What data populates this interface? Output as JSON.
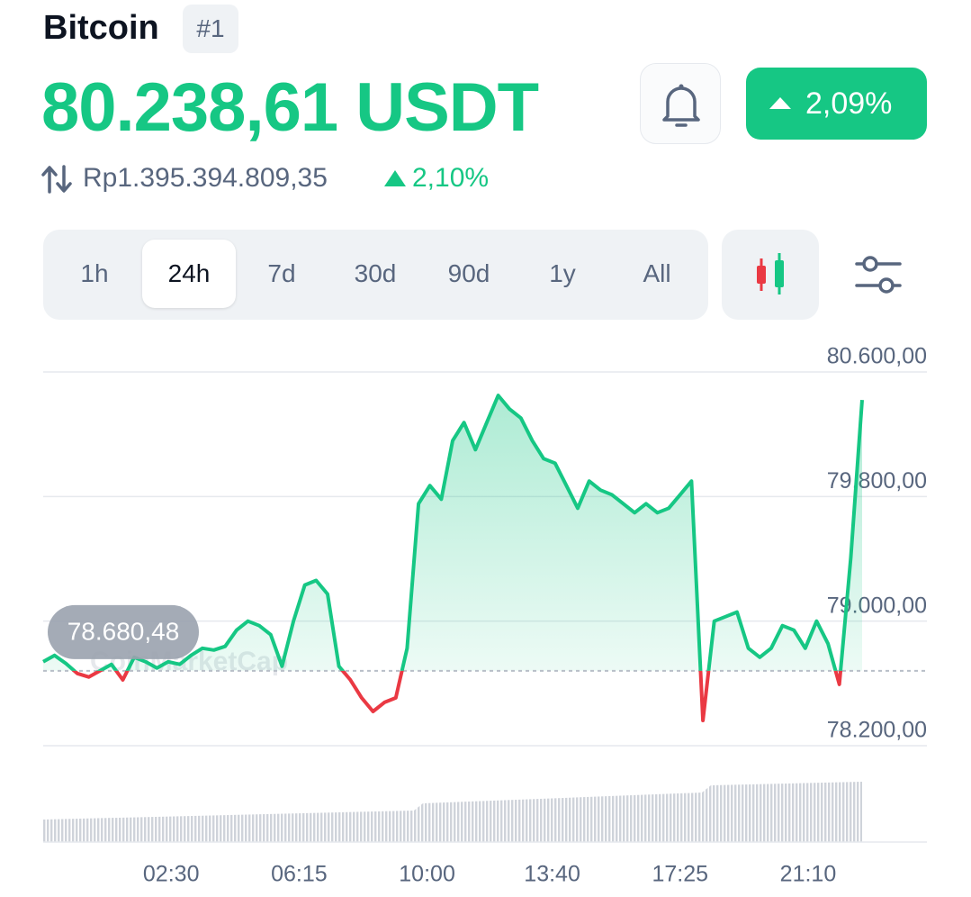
{
  "header": {
    "title": "Bitcoin",
    "rank": "#1",
    "price": "80.238,61 USDT",
    "change": "2,09%",
    "price_idr": "Rp1.395.394.809,35",
    "change_idr": "2,10%"
  },
  "tabs": [
    "1h",
    "24h",
    "7d",
    "30d",
    "90d",
    "1y",
    "All"
  ],
  "chart_data": {
    "type": "line",
    "watermark": "CoinMarketCap",
    "color": "#16c784",
    "color_below": "#ea3943",
    "baseline": {
      "value": 78680.48,
      "label": "78.680,48"
    },
    "x": [
      -75,
      -55,
      -35,
      -15,
      5,
      25,
      45,
      65,
      85,
      105,
      125,
      145,
      165,
      185,
      205,
      225,
      245,
      265,
      285,
      305,
      325,
      345,
      365,
      385,
      405,
      425,
      445,
      465,
      485,
      505,
      525,
      545,
      565,
      585,
      605,
      625,
      645,
      665,
      685,
      705,
      725,
      745,
      765,
      785,
      805,
      825,
      845,
      865,
      885,
      905,
      925,
      945,
      965,
      985,
      1005,
      1025,
      1045,
      1065,
      1085,
      1105,
      1125,
      1145,
      1165,
      1185,
      1205,
      1225,
      1245,
      1265,
      1285,
      1305,
      1325,
      1345,
      1365
    ],
    "values": [
      78739,
      78780,
      78728,
      78664,
      78641,
      78681,
      78722,
      78623,
      78768,
      78739,
      78699,
      78739,
      78722,
      78780,
      78826,
      78814,
      78838,
      78942,
      79000,
      78971,
      78913,
      78710,
      79000,
      79232,
      79261,
      79174,
      78710,
      78623,
      78507,
      78420,
      78478,
      78507,
      78826,
      79754,
      79870,
      79783,
      80159,
      80275,
      80101,
      80275,
      80449,
      80362,
      80304,
      80159,
      80043,
      80014,
      79870,
      79725,
      79899,
      79841,
      79812,
      79754,
      79696,
      79754,
      79696,
      79725,
      79812,
      79899,
      78362,
      79000,
      79029,
      79058,
      78826,
      78768,
      78826,
      78971,
      78942,
      78826,
      79000,
      78855,
      78594,
      79406,
      80420
    ],
    "xlim": [
      -75,
      1365
    ],
    "xticks": [
      {
        "value": 150,
        "label": "02:30"
      },
      {
        "value": 375,
        "label": "06:15"
      },
      {
        "value": 600,
        "label": "10:00"
      },
      {
        "value": 820,
        "label": "13:40"
      },
      {
        "value": 1045,
        "label": "17:25"
      },
      {
        "value": 1270,
        "label": "21:10"
      }
    ],
    "ylim": [
      78200,
      80600
    ],
    "yticks": [
      {
        "value": 80600,
        "label": "80.600,00"
      },
      {
        "value": 79800,
        "label": "79.800,00"
      },
      {
        "value": 79000,
        "label": "79.000,00"
      },
      {
        "value": 78200,
        "label": "78.200,00"
      }
    ],
    "grid": true
  }
}
